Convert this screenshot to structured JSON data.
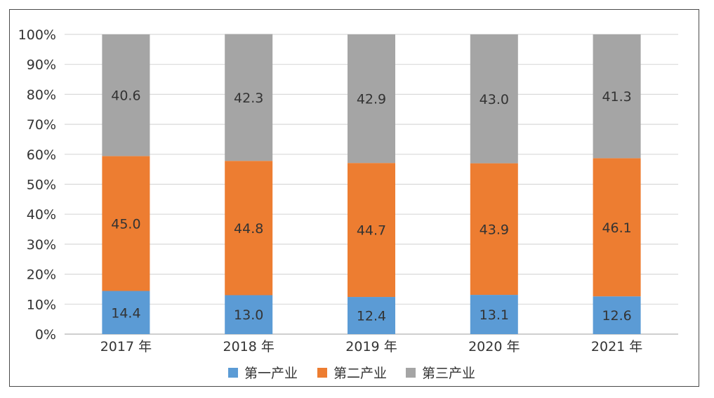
{
  "chart_data": {
    "type": "bar",
    "stacked": true,
    "percent": true,
    "categories": [
      "2017 年",
      "2018 年",
      "2019 年",
      "2020 年",
      "2021 年"
    ],
    "series": [
      {
        "name": "第一产业",
        "color": "#5b9bd5",
        "values": [
          14.4,
          13.0,
          12.4,
          13.1,
          12.6
        ]
      },
      {
        "name": "第二产业",
        "color": "#ed7d31",
        "values": [
          45.0,
          44.8,
          44.7,
          43.9,
          46.1
        ]
      },
      {
        "name": "第三产业",
        "color": "#a5a5a5",
        "values": [
          40.6,
          42.3,
          42.9,
          43.0,
          41.3
        ]
      }
    ],
    "yticks": [
      "0%",
      "10%",
      "20%",
      "30%",
      "40%",
      "50%",
      "60%",
      "70%",
      "80%",
      "90%",
      "100%"
    ],
    "ylim": [
      0,
      100
    ],
    "grid": true,
    "legend_position": "bottom"
  }
}
